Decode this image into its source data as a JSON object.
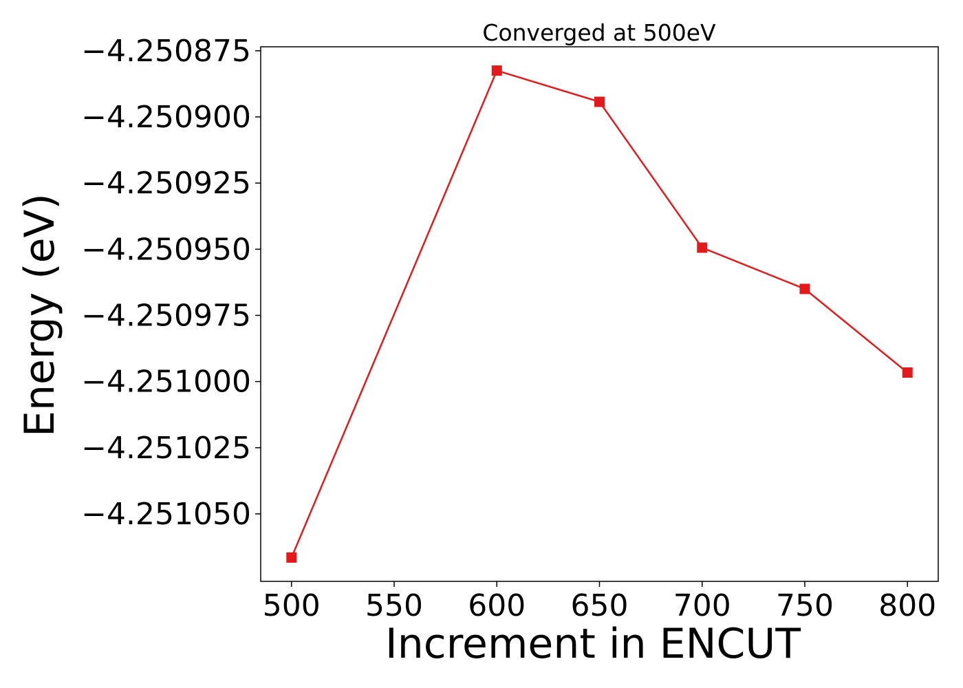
{
  "chart_data": {
    "type": "line",
    "title": "Converged at 500eV",
    "xlabel": "Increment in ENCUT",
    "ylabel": "Energy (eV)",
    "x": [
      500,
      600,
      650,
      700,
      750,
      800
    ],
    "series": [
      {
        "values": [
          -4.2510665,
          -4.2508825,
          -4.2508943,
          -4.2509494,
          -4.250965,
          -4.2509966
        ],
        "color": "#e31a1c",
        "marker": "square"
      }
    ],
    "xticks": [
      500,
      550,
      600,
      650,
      700,
      750,
      800
    ],
    "xtick_labels": [
      "500",
      "550",
      "600",
      "650",
      "700",
      "750",
      "800"
    ],
    "yticks": [
      -4.250875,
      -4.2509,
      -4.250925,
      -4.25095,
      -4.250975,
      -4.251,
      -4.251025,
      -4.25105
    ],
    "ytick_labels": [
      "−4.250875",
      "−4.250900",
      "−4.250925",
      "−4.250950",
      "−4.250975",
      "−4.251000",
      "−4.251025",
      "−4.251050"
    ],
    "xlim": [
      485,
      815
    ],
    "ylim": [
      -4.2510755,
      -4.2508735
    ],
    "grid": false,
    "legend": "none"
  }
}
